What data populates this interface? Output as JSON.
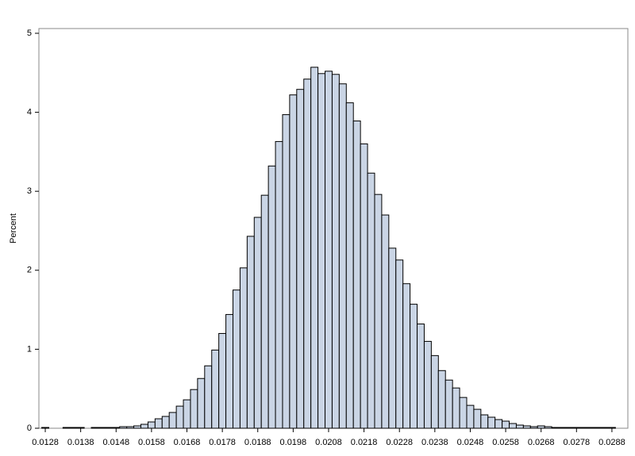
{
  "chart_data": {
    "type": "histogram",
    "y_label": "Percent",
    "color": "#cad5e5",
    "edge_color": "#000000",
    "bins": [
      0.0127,
      0.0129,
      0.0131,
      0.0133,
      0.0135,
      0.0137,
      0.0139,
      0.0141,
      0.0143,
      0.0145,
      0.0147,
      0.0149,
      0.0151,
      0.0153,
      0.0155,
      0.0157,
      0.0159,
      0.0161,
      0.0163,
      0.0165,
      0.0167,
      0.0169,
      0.0171,
      0.0173,
      0.0175,
      0.0177,
      0.0179,
      0.0181,
      0.0183,
      0.0185,
      0.0187,
      0.0189,
      0.0191,
      0.0193,
      0.0195,
      0.0197,
      0.0199,
      0.0201,
      0.0203,
      0.0205,
      0.0207,
      0.0209,
      0.0211,
      0.0213,
      0.0215,
      0.0217,
      0.0219,
      0.0221,
      0.0223,
      0.0225,
      0.0227,
      0.0229,
      0.0231,
      0.0233,
      0.0235,
      0.0237,
      0.0239,
      0.0241,
      0.0243,
      0.0245,
      0.0247,
      0.0249,
      0.0251,
      0.0253,
      0.0255,
      0.0257,
      0.0259,
      0.0261,
      0.0263,
      0.0265,
      0.0267,
      0.0269,
      0.0271,
      0.0273,
      0.0275,
      0.0277,
      0.0279,
      0.0281,
      0.0283,
      0.0285,
      0.0287,
      0.0289
    ],
    "values": [
      0.01,
      0,
      0,
      0.01,
      0.01,
      0.01,
      0,
      0.01,
      0.01,
      0.01,
      0.01,
      0.02,
      0.02,
      0.03,
      0.05,
      0.08,
      0.12,
      0.15,
      0.2,
      0.28,
      0.36,
      0.49,
      0.63,
      0.79,
      0.99,
      1.2,
      1.44,
      1.75,
      2.03,
      2.43,
      2.67,
      2.95,
      3.32,
      3.63,
      3.97,
      4.22,
      4.29,
      4.42,
      4.57,
      4.49,
      4.52,
      4.48,
      4.36,
      4.12,
      3.89,
      3.6,
      3.23,
      2.96,
      2.7,
      2.28,
      2.13,
      1.83,
      1.57,
      1.32,
      1.1,
      0.92,
      0.73,
      0.61,
      0.51,
      0.39,
      0.29,
      0.24,
      0.17,
      0.14,
      0.11,
      0.09,
      0.06,
      0.04,
      0.03,
      0.02,
      0.03,
      0.02,
      0.01,
      0.01,
      0.01,
      0.01,
      0.01,
      0.01,
      0.01,
      0.01,
      0.01
    ],
    "xlim": [
      0.01262,
      0.02925
    ],
    "xticks": [
      0.0128,
      0.0138,
      0.0148,
      0.0158,
      0.0168,
      0.0178,
      0.0188,
      0.0198,
      0.0208,
      0.0218,
      0.0228,
      0.0238,
      0.0248,
      0.0258,
      0.0268,
      0.0278,
      0.0288
    ],
    "ylim": [
      0,
      5.06
    ],
    "yticks": [
      0,
      1,
      2,
      3,
      4,
      5
    ]
  }
}
